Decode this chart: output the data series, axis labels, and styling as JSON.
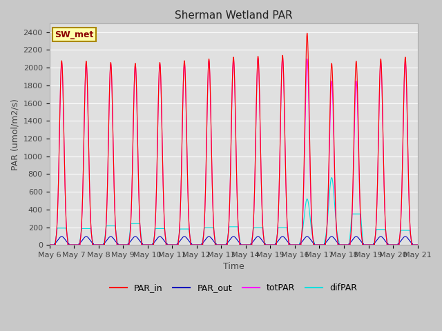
{
  "title": "Sherman Wetland PAR",
  "ylabel": "PAR (umol/m2/s)",
  "xlabel": "Time",
  "legend_label": "SW_met",
  "ylim": [
    0,
    2500
  ],
  "series": {
    "PAR_in": {
      "color": "#ff0000",
      "lw": 0.8
    },
    "PAR_out": {
      "color": "#0000bb",
      "lw": 0.8
    },
    "totPAR": {
      "color": "#ff00ff",
      "lw": 0.8
    },
    "difPAR": {
      "color": "#00dddd",
      "lw": 0.8
    }
  },
  "num_days": 15,
  "start_day": 6,
  "fig_facecolor": "#c8c8c8",
  "axes_facecolor": "#e0e0e0",
  "grid_color": "#ffffff",
  "title_fontsize": 11,
  "label_fontsize": 9,
  "tick_fontsize": 8,
  "legend_fontsize": 9,
  "box_facecolor": "#ffffaa",
  "box_edgecolor": "#aa8800",
  "par_in_peaks": [
    2080,
    2075,
    2060,
    2050,
    2060,
    2080,
    2100,
    2120,
    2130,
    2140,
    2390,
    2050,
    2075,
    2100,
    2120
  ],
  "par_tot_peaks": [
    2060,
    2055,
    2045,
    2040,
    2045,
    2060,
    2080,
    2100,
    2110,
    2120,
    2100,
    1850,
    1850,
    2060,
    2080
  ],
  "par_out_peaks": [
    95,
    95,
    95,
    95,
    95,
    95,
    95,
    95,
    95,
    95,
    95,
    95,
    95,
    95,
    95
  ],
  "dif_par_peaks": [
    190,
    185,
    215,
    240,
    185,
    180,
    195,
    205,
    195,
    195,
    520,
    760,
    350,
    175,
    165
  ],
  "dif_par_flat": [
    true,
    true,
    true,
    true,
    true,
    true,
    true,
    true,
    true,
    true,
    false,
    false,
    true,
    true,
    true
  ]
}
